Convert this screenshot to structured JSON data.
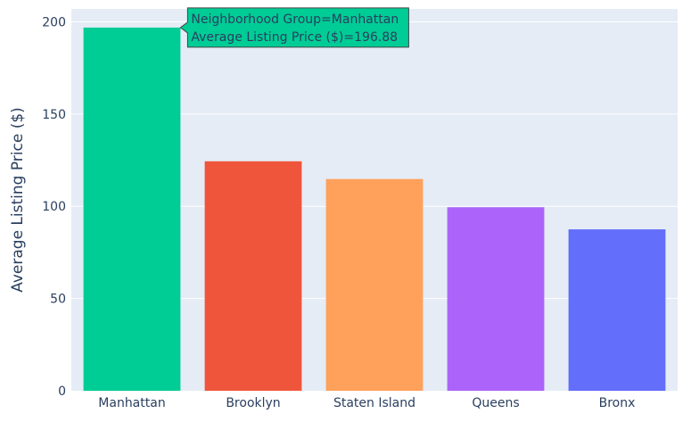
{
  "chart_data": {
    "type": "bar",
    "title": "",
    "xlabel": "",
    "ylabel": "Average Listing Price ($)",
    "categories": [
      "Manhattan",
      "Brooklyn",
      "Staten Island",
      "Queens",
      "Bronx"
    ],
    "values": [
      196.88,
      124.4,
      114.8,
      99.5,
      87.5
    ],
    "colors": [
      "#00cc96",
      "#ef553b",
      "#ffa15a",
      "#ab63fa",
      "#636efa"
    ],
    "ylim": [
      0,
      207
    ],
    "yticks": [
      0,
      50,
      100,
      150,
      200
    ],
    "grid": true,
    "plot_background": "#e5ecf6",
    "gridline_color": "#ffffff",
    "legend": "none",
    "hover_label": {
      "category_index": 0,
      "line1": "Neighborhood Group=Manhattan",
      "line2": "Average Listing Price ($)=196.88",
      "background": "#00cc96",
      "border": "#444444"
    }
  }
}
